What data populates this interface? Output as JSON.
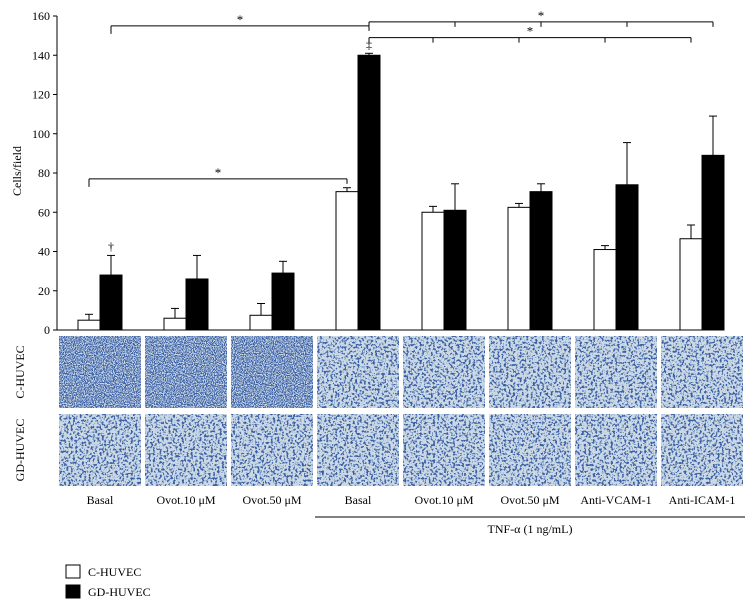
{
  "chart_data": {
    "type": "bar",
    "ylabel": "Cells/field",
    "ylim": [
      0,
      160
    ],
    "yticks": [
      0,
      20,
      40,
      60,
      80,
      100,
      120,
      140,
      160
    ],
    "categories": [
      "Basal",
      "Ovot.10 μM",
      "Ovot.50 μM",
      "Basal",
      "Ovot.10 μM",
      "Ovot.50 μM",
      "Anti-VCAM-1",
      "Anti-ICAM-1"
    ],
    "series": [
      {
        "name": "C-HUVEC",
        "color": "#ffffff",
        "values": [
          5,
          6,
          7.5,
          70.5,
          60,
          62.5,
          41,
          46.5
        ],
        "errors": [
          3,
          5,
          6,
          2,
          3,
          2,
          2,
          7
        ]
      },
      {
        "name": "GD-HUVEC",
        "color": "#000000",
        "values": [
          28,
          26,
          29,
          140,
          61,
          70.5,
          74,
          89
        ],
        "errors": [
          10,
          12,
          6,
          1,
          13.5,
          4,
          21.5,
          20
        ]
      }
    ],
    "bar_marks": [
      {
        "category_index": 0,
        "series_index": 1,
        "text": "†"
      },
      {
        "category_index": 3,
        "series_index": 1,
        "text": "‡"
      }
    ],
    "significance": [
      {
        "text": "*",
        "from": {
          "category_index": 0,
          "series_index": 1
        },
        "to": [
          {
            "category_index": 3,
            "series_index": 1
          }
        ],
        "y": 155
      },
      {
        "text": "*",
        "from": {
          "category_index": 3,
          "series_index": 1
        },
        "to": [
          {
            "category_index": 4,
            "series_index": 1
          },
          {
            "category_index": 5,
            "series_index": 1
          },
          {
            "category_index": 6,
            "series_index": 1
          },
          {
            "category_index": 7,
            "series_index": 1
          }
        ],
        "y": 157
      },
      {
        "text": "*",
        "from": {
          "category_index": 3,
          "series_index": 1
        },
        "to": [
          {
            "category_index": 4,
            "series_index": 0
          },
          {
            "category_index": 5,
            "series_index": 0
          },
          {
            "category_index": 6,
            "series_index": 0
          },
          {
            "category_index": 7,
            "series_index": 0
          }
        ],
        "y": 149
      },
      {
        "text": "*",
        "from": {
          "category_index": 0,
          "series_index": 0
        },
        "to": [
          {
            "category_index": 3,
            "series_index": 0
          }
        ],
        "y": 77
      }
    ],
    "group_label": {
      "text": "TNF-α (1 ng/mL)",
      "from_category_index": 3,
      "to_category_index": 7
    }
  },
  "micrograph_rows": [
    {
      "label": "C-HUVEC",
      "tone": "dense"
    },
    {
      "label": "GD-HUVEC",
      "tone": "sparse"
    }
  ],
  "legend": [
    {
      "label": "C-HUVEC",
      "color": "#ffffff"
    },
    {
      "label": "GD-HUVEC",
      "color": "#000000"
    }
  ]
}
